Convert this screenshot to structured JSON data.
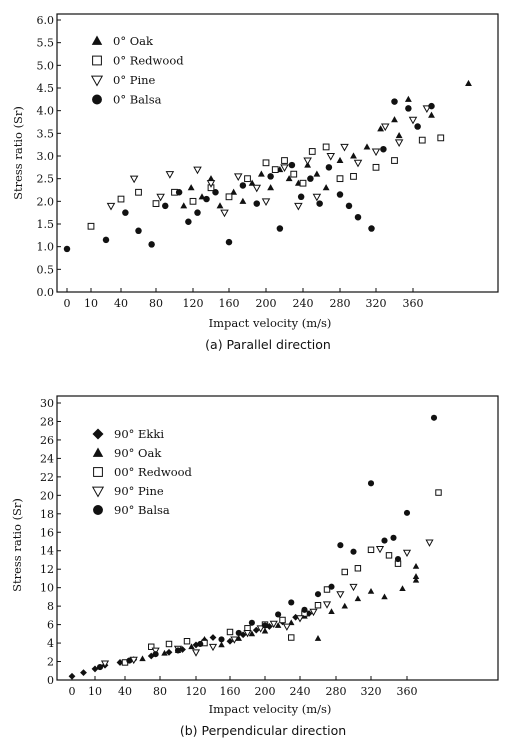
{
  "chart_data": [
    {
      "type": "scatter",
      "caption": "(a) Parallel direction",
      "xlabel": "Impact velocity (m/s)",
      "ylabel": "Stress ratio (Sr)",
      "x_ticks": [
        "0",
        "10",
        "40",
        "80",
        "120",
        "160",
        "200",
        "240",
        "280",
        "320",
        "360"
      ],
      "y_ticks": [
        "0.0",
        "0.5",
        "1.0",
        "1.5",
        "2.0",
        "2.5",
        "3.0",
        "3.5",
        "4.0",
        "4.5",
        "5.0",
        "5.5",
        "6.0"
      ],
      "ylim": [
        0,
        6
      ],
      "grid": false,
      "legend": "top-left",
      "series": [
        {
          "name": "0° Oak",
          "marker": "triangle-filled",
          "points": [
            [
              110,
              1.9
            ],
            [
              118,
              2.3
            ],
            [
              130,
              2.1
            ],
            [
              140,
              2.5
            ],
            [
              150,
              1.9
            ],
            [
              165,
              2.2
            ],
            [
              175,
              2.0
            ],
            [
              185,
              2.4
            ],
            [
              195,
              2.6
            ],
            [
              205,
              2.3
            ],
            [
              215,
              2.7
            ],
            [
              225,
              2.5
            ],
            [
              235,
              2.4
            ],
            [
              245,
              2.8
            ],
            [
              255,
              2.6
            ],
            [
              265,
              2.3
            ],
            [
              280,
              2.9
            ],
            [
              295,
              3.0
            ],
            [
              310,
              3.2
            ],
            [
              325,
              3.6
            ],
            [
              340,
              3.8
            ],
            [
              355,
              4.25
            ],
            [
              420,
              4.6
            ],
            [
              380,
              3.9
            ],
            [
              345,
              3.45
            ]
          ]
        },
        {
          "name": "0° Redwood",
          "marker": "square-open",
          "points": [
            [
              10,
              1.45
            ],
            [
              40,
              2.05
            ],
            [
              60,
              2.2
            ],
            [
              80,
              1.95
            ],
            [
              100,
              2.2
            ],
            [
              120,
              2.0
            ],
            [
              140,
              2.3
            ],
            [
              160,
              2.1
            ],
            [
              180,
              2.5
            ],
            [
              200,
              2.85
            ],
            [
              210,
              2.7
            ],
            [
              220,
              2.9
            ],
            [
              230,
              2.6
            ],
            [
              240,
              2.4
            ],
            [
              250,
              3.1
            ],
            [
              265,
              3.2
            ],
            [
              280,
              2.5
            ],
            [
              295,
              2.55
            ],
            [
              320,
              2.75
            ],
            [
              340,
              2.9
            ],
            [
              370,
              3.35
            ],
            [
              390,
              3.4
            ]
          ]
        },
        {
          "name": "0° Pine",
          "marker": "triangle-open",
          "points": [
            [
              30,
              1.9
            ],
            [
              55,
              2.5
            ],
            [
              85,
              2.1
            ],
            [
              95,
              2.6
            ],
            [
              125,
              2.7
            ],
            [
              140,
              2.4
            ],
            [
              155,
              1.75
            ],
            [
              170,
              2.55
            ],
            [
              190,
              2.3
            ],
            [
              200,
              2.0
            ],
            [
              220,
              2.75
            ],
            [
              235,
              1.9
            ],
            [
              245,
              2.9
            ],
            [
              255,
              2.1
            ],
            [
              270,
              3.0
            ],
            [
              285,
              3.2
            ],
            [
              300,
              2.85
            ],
            [
              320,
              3.1
            ],
            [
              330,
              3.65
            ],
            [
              345,
              3.3
            ],
            [
              360,
              3.8
            ],
            [
              375,
              4.05
            ]
          ]
        },
        {
          "name": "0° Balsa",
          "marker": "circle-filled",
          "points": [
            [
              0,
              0.95
            ],
            [
              25,
              1.15
            ],
            [
              45,
              1.75
            ],
            [
              60,
              1.35
            ],
            [
              75,
              1.05
            ],
            [
              90,
              1.9
            ],
            [
              105,
              2.2
            ],
            [
              115,
              1.55
            ],
            [
              125,
              1.75
            ],
            [
              135,
              2.05
            ],
            [
              145,
              2.2
            ],
            [
              160,
              1.1
            ],
            [
              175,
              2.35
            ],
            [
              190,
              1.95
            ],
            [
              205,
              2.55
            ],
            [
              215,
              1.4
            ],
            [
              228,
              2.8
            ],
            [
              238,
              2.1
            ],
            [
              248,
              2.5
            ],
            [
              258,
              1.95
            ],
            [
              268,
              2.75
            ],
            [
              280,
              2.15
            ],
            [
              290,
              1.9
            ],
            [
              300,
              1.65
            ],
            [
              315,
              1.4
            ],
            [
              328,
              3.15
            ],
            [
              340,
              4.2
            ],
            [
              355,
              4.05
            ],
            [
              365,
              3.65
            ],
            [
              380,
              4.1
            ]
          ]
        }
      ]
    },
    {
      "type": "scatter",
      "caption": "(b) Perpendicular direction",
      "xlabel": "Impact velocity (m/s)",
      "ylabel": "Stress ratio (Sr)",
      "x_ticks": [
        "0",
        "10",
        "40",
        "80",
        "120",
        "160",
        "200",
        "240",
        "280",
        "320",
        "360"
      ],
      "y_ticks": [
        "0",
        "2",
        "4",
        "6",
        "8",
        "10",
        "12",
        "14",
        "16",
        "18",
        "20",
        "22",
        "24",
        "26",
        "28",
        "30"
      ],
      "ylim": [
        0,
        30
      ],
      "grid": false,
      "legend": "top-left",
      "series": [
        {
          "name": "90° Ekki",
          "marker": "diamond-filled",
          "points": [
            [
              0,
              0.4
            ],
            [
              5,
              0.8
            ],
            [
              10,
              1.2
            ],
            [
              20,
              1.6
            ],
            [
              35,
              1.9
            ],
            [
              50,
              2.2
            ],
            [
              70,
              2.6
            ],
            [
              90,
              3.0
            ],
            [
              105,
              3.3
            ],
            [
              120,
              3.8
            ],
            [
              130,
              4.3
            ],
            [
              140,
              4.6
            ],
            [
              160,
              4.2
            ],
            [
              175,
              4.9
            ],
            [
              190,
              5.4
            ],
            [
              205,
              5.8
            ],
            [
              220,
              6.3
            ],
            [
              235,
              6.8
            ],
            [
              250,
              7.2
            ]
          ]
        },
        {
          "name": "90° Oak",
          "marker": "triangle-filled",
          "points": [
            [
              60,
              2.3
            ],
            [
              85,
              2.9
            ],
            [
              100,
              3.2
            ],
            [
              115,
              3.6
            ],
            [
              130,
              4.4
            ],
            [
              150,
              3.8
            ],
            [
              170,
              4.5
            ],
            [
              185,
              5.0
            ],
            [
              200,
              5.3
            ],
            [
              215,
              5.9
            ],
            [
              230,
              6.2
            ],
            [
              245,
              6.9
            ],
            [
              260,
              4.5
            ],
            [
              275,
              7.4
            ],
            [
              290,
              8.0
            ],
            [
              305,
              8.8
            ],
            [
              320,
              9.6
            ],
            [
              335,
              9.0
            ],
            [
              355,
              9.9
            ],
            [
              370,
              10.8
            ],
            [
              370,
              12.3
            ],
            [
              370,
              11.2
            ]
          ]
        },
        {
          "name": "00° Redwood",
          "marker": "square-open",
          "points": [
            [
              40,
              1.9
            ],
            [
              70,
              3.6
            ],
            [
              90,
              3.9
            ],
            [
              110,
              4.2
            ],
            [
              130,
              4.0
            ],
            [
              160,
              5.2
            ],
            [
              180,
              5.6
            ],
            [
              200,
              6.0
            ],
            [
              220,
              6.5
            ],
            [
              230,
              4.6
            ],
            [
              245,
              7.2
            ],
            [
              260,
              8.1
            ],
            [
              270,
              9.8
            ],
            [
              290,
              11.7
            ],
            [
              305,
              12.1
            ],
            [
              320,
              14.1
            ],
            [
              340,
              13.5
            ],
            [
              350,
              12.6
            ],
            [
              395,
              20.3
            ]
          ]
        },
        {
          "name": "90° Pine",
          "marker": "triangle-open",
          "points": [
            [
              20,
              1.8
            ],
            [
              50,
              2.2
            ],
            [
              75,
              3.2
            ],
            [
              100,
              3.4
            ],
            [
              120,
              3.0
            ],
            [
              140,
              3.6
            ],
            [
              165,
              4.4
            ],
            [
              180,
              5.1
            ],
            [
              195,
              5.6
            ],
            [
              210,
              6.1
            ],
            [
              225,
              5.8
            ],
            [
              240,
              6.7
            ],
            [
              255,
              7.4
            ],
            [
              270,
              8.2
            ],
            [
              285,
              9.3
            ],
            [
              300,
              10.1
            ],
            [
              330,
              14.2
            ],
            [
              360,
              13.8
            ],
            [
              385,
              14.9
            ]
          ]
        },
        {
          "name": "90° Balsa",
          "marker": "circle-filled",
          "points": [
            [
              15,
              1.4
            ],
            [
              45,
              2.1
            ],
            [
              75,
              2.8
            ],
            [
              100,
              3.2
            ],
            [
              125,
              3.9
            ],
            [
              150,
              4.4
            ],
            [
              170,
              5.1
            ],
            [
              185,
              6.2
            ],
            [
              200,
              5.9
            ],
            [
              215,
              7.1
            ],
            [
              230,
              8.4
            ],
            [
              245,
              7.6
            ],
            [
              260,
              9.3
            ],
            [
              275,
              10.1
            ],
            [
              285,
              14.6
            ],
            [
              300,
              13.9
            ],
            [
              320,
              21.3
            ],
            [
              335,
              15.1
            ],
            [
              345,
              15.4
            ],
            [
              350,
              13.1
            ],
            [
              360,
              18.1
            ],
            [
              390,
              28.4
            ]
          ]
        }
      ]
    }
  ]
}
